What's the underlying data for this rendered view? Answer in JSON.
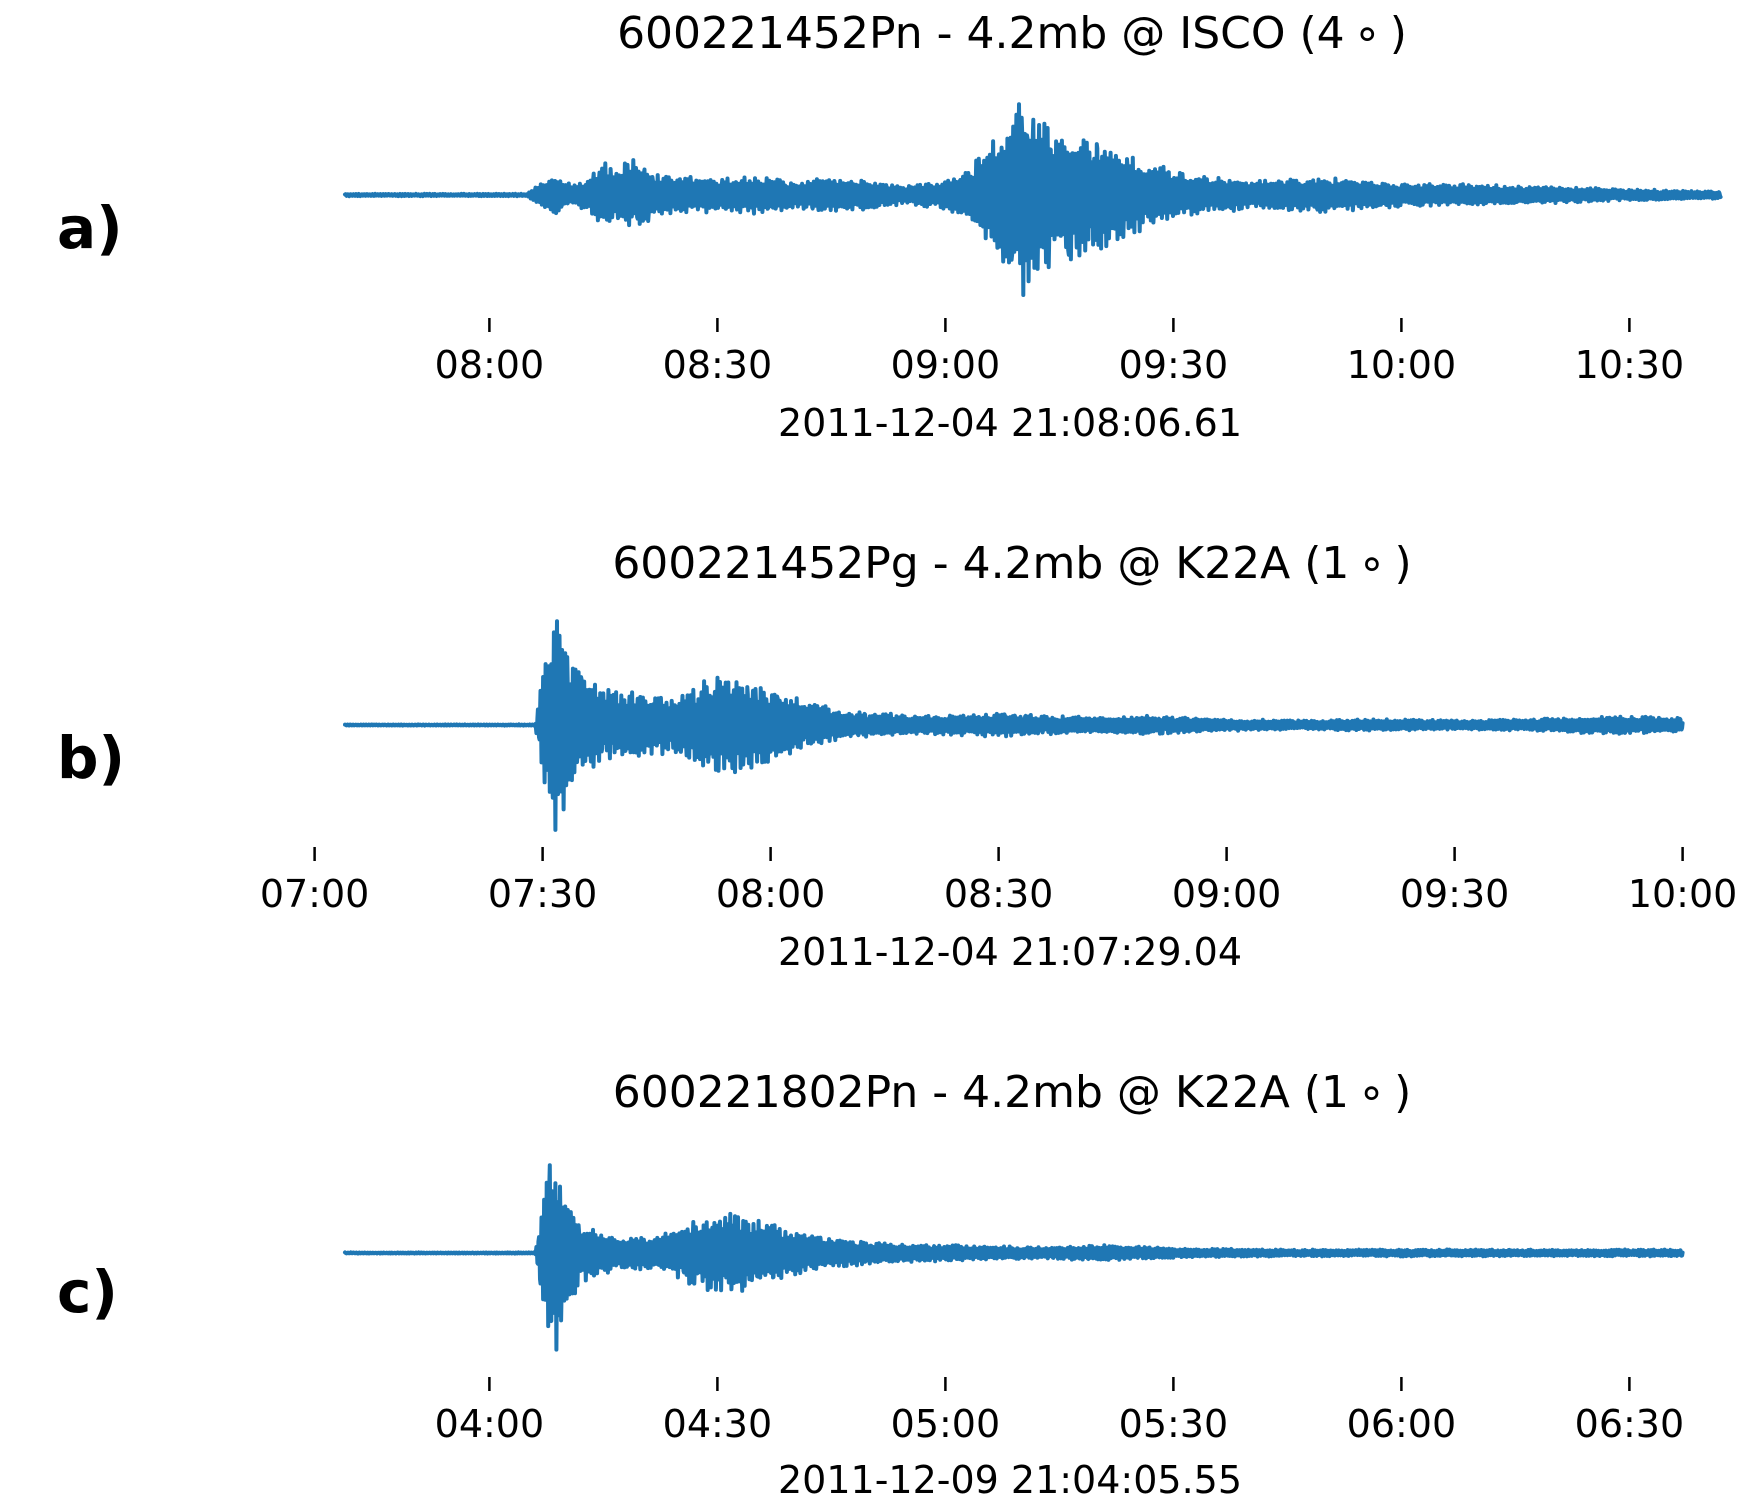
{
  "figure": {
    "trace_color": "#1f77b4"
  },
  "chart_data": [
    {
      "type": "line",
      "panel_label": "a)",
      "title": "600221452Pn - 4.2mb @ ISCO (4$^\\circ$)",
      "title_display": "600221452Pn - 4.2mb @ ISCO (4 ∘ )",
      "xlabel": "2011-12-04 21:08:06.61",
      "ylabel": "",
      "x_unit": "mm:ss",
      "xlim": [
        "07:41",
        "10:42"
      ],
      "ticks": [
        "08:00",
        "08:30",
        "09:00",
        "09:30",
        "10:00",
        "10:30"
      ],
      "grid": false,
      "series": [
        {
          "envelope": [
            [
              "07:41",
              0.01
            ],
            [
              "08:05",
              0.01
            ],
            [
              "08:07",
              0.12
            ],
            [
              "08:09",
              0.16
            ],
            [
              "08:11",
              0.08
            ],
            [
              "08:13",
              0.14
            ],
            [
              "08:15",
              0.32
            ],
            [
              "08:17",
              0.22
            ],
            [
              "08:19",
              0.34
            ],
            [
              "08:22",
              0.18
            ],
            [
              "08:26",
              0.16
            ],
            [
              "08:30",
              0.14
            ],
            [
              "08:35",
              0.16
            ],
            [
              "08:40",
              0.13
            ],
            [
              "08:45",
              0.15
            ],
            [
              "08:50",
              0.12
            ],
            [
              "08:55",
              0.08
            ],
            [
              "09:00",
              0.12
            ],
            [
              "09:03",
              0.22
            ],
            [
              "09:07",
              0.55
            ],
            [
              "09:10",
              0.95
            ],
            [
              "09:12",
              0.75
            ],
            [
              "09:15",
              0.62
            ],
            [
              "09:20",
              0.52
            ],
            [
              "09:23",
              0.38
            ],
            [
              "09:27",
              0.28
            ],
            [
              "09:32",
              0.18
            ],
            [
              "09:40",
              0.12
            ],
            [
              "09:50",
              0.15
            ],
            [
              "10:00",
              0.1
            ],
            [
              "10:10",
              0.09
            ],
            [
              "10:20",
              0.07
            ],
            [
              "10:30",
              0.05
            ],
            [
              "10:42",
              0.03
            ]
          ]
        }
      ]
    },
    {
      "type": "line",
      "panel_label": "b)",
      "title": "600221452Pg - 4.2mb @ K22A (1$^\\circ$)",
      "title_display": "600221452Pg - 4.2mb @ K22A (1 ∘ )",
      "xlabel": "2011-12-04 21:07:29.04",
      "ylabel": "",
      "x_unit": "mm:ss",
      "xlim": [
        "07:04",
        "10:00"
      ],
      "ticks": [
        "07:00",
        "07:30",
        "08:00",
        "08:30",
        "09:00",
        "09:30",
        "10:00"
      ],
      "grid": false,
      "series": [
        {
          "envelope": [
            [
              "07:04",
              0.005
            ],
            [
              "07:29",
              0.005
            ],
            [
              "07:30",
              0.45
            ],
            [
              "07:32",
              0.98
            ],
            [
              "07:34",
              0.55
            ],
            [
              "07:37",
              0.35
            ],
            [
              "07:42",
              0.28
            ],
            [
              "07:47",
              0.24
            ],
            [
              "07:52",
              0.4
            ],
            [
              "07:56",
              0.45
            ],
            [
              "08:00",
              0.32
            ],
            [
              "08:05",
              0.2
            ],
            [
              "08:10",
              0.12
            ],
            [
              "08:20",
              0.08
            ],
            [
              "08:30",
              0.1
            ],
            [
              "08:40",
              0.07
            ],
            [
              "08:50",
              0.08
            ],
            [
              "09:00",
              0.05
            ],
            [
              "09:10",
              0.04
            ],
            [
              "09:20",
              0.05
            ],
            [
              "09:30",
              0.04
            ],
            [
              "09:40",
              0.05
            ],
            [
              "09:50",
              0.08
            ],
            [
              "10:00",
              0.06
            ]
          ]
        }
      ]
    },
    {
      "type": "line",
      "panel_label": "c)",
      "title": "600221802Pn - 4.2mb @ K22A (1$^\\circ$)",
      "title_display": "600221802Pn - 4.2mb @ K22A (1 ∘ )",
      "xlabel": "2011-12-09 21:04:05.55",
      "ylabel": "",
      "x_unit": "mm:ss",
      "xlim": [
        "03:41",
        "06:37"
      ],
      "ticks": [
        "04:00",
        "04:30",
        "05:00",
        "05:30",
        "06:00",
        "06:30"
      ],
      "grid": false,
      "series": [
        {
          "envelope": [
            [
              "03:41",
              0.005
            ],
            [
              "04:06",
              0.005
            ],
            [
              "04:07",
              0.45
            ],
            [
              "04:08",
              0.98
            ],
            [
              "04:10",
              0.6
            ],
            [
              "04:12",
              0.25
            ],
            [
              "04:16",
              0.16
            ],
            [
              "04:22",
              0.14
            ],
            [
              "04:27",
              0.3
            ],
            [
              "04:31",
              0.35
            ],
            [
              "04:35",
              0.3
            ],
            [
              "04:39",
              0.22
            ],
            [
              "04:45",
              0.12
            ],
            [
              "04:55",
              0.08
            ],
            [
              "05:05",
              0.06
            ],
            [
              "05:15",
              0.05
            ],
            [
              "05:20",
              0.07
            ],
            [
              "05:30",
              0.04
            ],
            [
              "05:45",
              0.03
            ],
            [
              "06:00",
              0.03
            ],
            [
              "06:20",
              0.03
            ],
            [
              "06:37",
              0.03
            ]
          ]
        }
      ]
    }
  ]
}
